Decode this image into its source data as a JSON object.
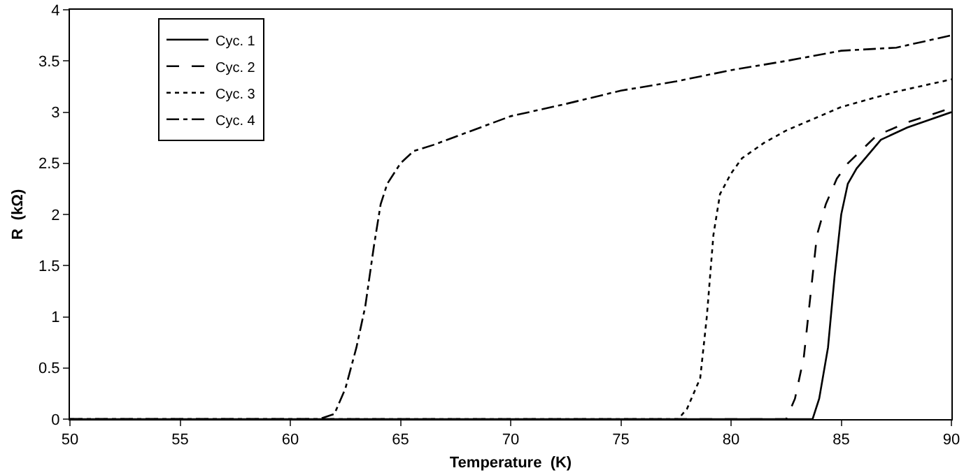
{
  "chart_data": {
    "type": "line",
    "xlabel": "Temperature  (K)",
    "ylabel": "R  (kΩ)",
    "xlim": [
      50,
      90
    ],
    "xticks": [
      50,
      55,
      60,
      65,
      70,
      75,
      80,
      85,
      90
    ],
    "ylim": [
      0,
      4
    ],
    "yticks": [
      0,
      0.5,
      1,
      1.5,
      2,
      2.5,
      3,
      3.5,
      4
    ],
    "grid": false,
    "legend": "top left",
    "marker": "none",
    "series": [
      {
        "name": "Cyc. 1",
        "color": "#000000",
        "line_style": "solid",
        "x": [
          50,
          83.7,
          84,
          84.4,
          84.7,
          85,
          85.3,
          85.7,
          86.8,
          88,
          90
        ],
        "values": [
          0,
          0,
          0.2,
          0.7,
          1.4,
          2.0,
          2.3,
          2.45,
          2.73,
          2.85,
          3.0
        ]
      },
      {
        "name": "Cyc. 2",
        "color": "#000000",
        "line_style": "dashed",
        "x": [
          50,
          82.5,
          82.9,
          83.3,
          83.6,
          83.9,
          84.3,
          84.8,
          85.3,
          86.6,
          88,
          90
        ],
        "values": [
          0,
          0,
          0.2,
          0.6,
          1.2,
          1.8,
          2.1,
          2.35,
          2.5,
          2.77,
          2.9,
          3.04
        ]
      },
      {
        "name": "Cyc. 3",
        "color": "#000000",
        "line_style": "dotted",
        "x": [
          50,
          77.6,
          78,
          78.6,
          78.9,
          79.2,
          79.5,
          80,
          80.5,
          81.5,
          82.5,
          85,
          87.5,
          90
        ],
        "values": [
          0,
          0,
          0.1,
          0.4,
          1.0,
          1.8,
          2.2,
          2.4,
          2.55,
          2.7,
          2.82,
          3.05,
          3.2,
          3.32
        ]
      },
      {
        "name": "Cyc. 4",
        "color": "#000000",
        "line_style": "dashdot",
        "x": [
          50,
          61.3,
          62,
          62.5,
          63,
          63.4,
          63.8,
          64.1,
          64.4,
          65,
          65.6,
          66.5,
          68,
          70,
          72.5,
          75,
          77.5,
          80,
          82.5,
          85,
          87.5,
          90
        ],
        "values": [
          0,
          0,
          0.05,
          0.3,
          0.7,
          1.1,
          1.7,
          2.1,
          2.3,
          2.5,
          2.62,
          2.68,
          2.8,
          2.96,
          3.08,
          3.21,
          3.3,
          3.41,
          3.5,
          3.6,
          3.63,
          3.75
        ]
      }
    ]
  }
}
